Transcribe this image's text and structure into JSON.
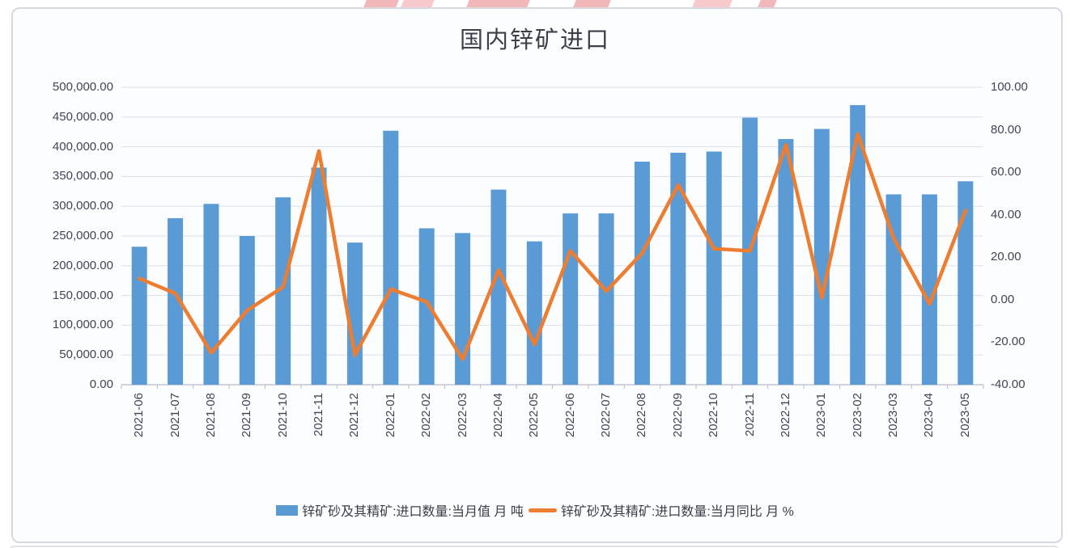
{
  "chart_data": {
    "type": "combo-bar-line",
    "title": "国内锌矿进口",
    "categories": [
      "2021-06",
      "2021-07",
      "2021-08",
      "2021-09",
      "2021-10",
      "2021-11",
      "2021-12",
      "2022-01",
      "2022-02",
      "2022-03",
      "2022-04",
      "2022-05",
      "2022-06",
      "2022-07",
      "2022-08",
      "2022-09",
      "2022-10",
      "2022-11",
      "2022-12",
      "2023-01",
      "2023-02",
      "2023-03",
      "2023-04",
      "2023-05"
    ],
    "series": [
      {
        "name": "锌矿砂及其精矿:进口数量:当月值 月 吨",
        "type": "bar",
        "yaxis": "left",
        "color": "#5B9BD5",
        "values": [
          232000,
          280000,
          304000,
          250000,
          315000,
          365000,
          239000,
          427000,
          263000,
          255000,
          328000,
          241000,
          288000,
          288000,
          375000,
          390000,
          392000,
          449000,
          413000,
          430000,
          470000,
          320000,
          320000,
          342000
        ]
      },
      {
        "name": "锌矿砂及其精矿:进口数量:当月同比 月 %",
        "type": "line",
        "yaxis": "right",
        "color": "#ED7D31",
        "values": [
          10,
          3,
          -25,
          -5,
          6,
          70,
          -26,
          5,
          -1,
          -28,
          14,
          -21,
          23,
          4,
          22,
          54,
          24,
          23,
          73,
          1,
          78,
          29,
          -2,
          42
        ]
      }
    ],
    "left_axis": {
      "min": 0,
      "max": 500000,
      "step": 50000,
      "labels": [
        "500,000.00",
        "450,000.00",
        "400,000.00",
        "350,000.00",
        "300,000.00",
        "250,000.00",
        "200,000.00",
        "150,000.00",
        "100,000.00",
        "50,000.00",
        "0.00"
      ]
    },
    "right_axis": {
      "min": -40,
      "max": 100,
      "step": 20,
      "labels": [
        "100.00",
        "80.00",
        "60.00",
        "40.00",
        "20.00",
        "0.00",
        "-20.00",
        "-40.00"
      ]
    },
    "grid": true,
    "legend_position": "bottom"
  }
}
